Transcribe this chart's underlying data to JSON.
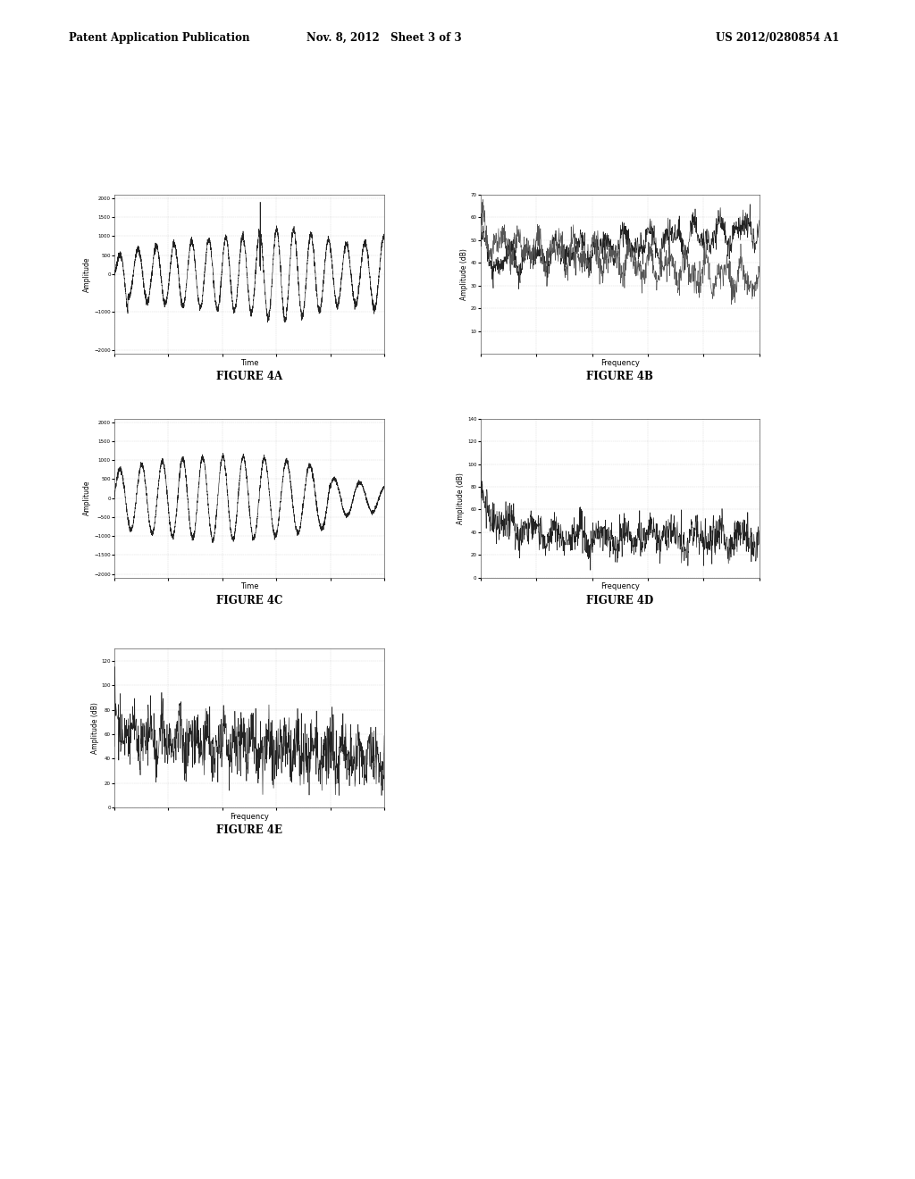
{
  "header_left": "Patent Application Publication",
  "header_center": "Nov. 8, 2012   Sheet 3 of 3",
  "header_right": "US 2012/0280854 A1",
  "fig4a_label": "FIGURE 4A",
  "fig4b_label": "FIGURE 4B",
  "fig4c_label": "FIGURE 4C",
  "fig4d_label": "FIGURE 4D",
  "fig4e_label": "FIGURE 4E",
  "ylabel_time": "Amplitude",
  "ylabel_freq": "Amplitude (dB)",
  "xlabel_time": "Time",
  "xlabel_freq": "Frequency",
  "background_color": "#ffffff",
  "plot_bg": "#ffffff",
  "line_color": "#222222",
  "line_color2": "#555555",
  "grid_color": "#aaaaaa",
  "header_line_color": "#000000"
}
